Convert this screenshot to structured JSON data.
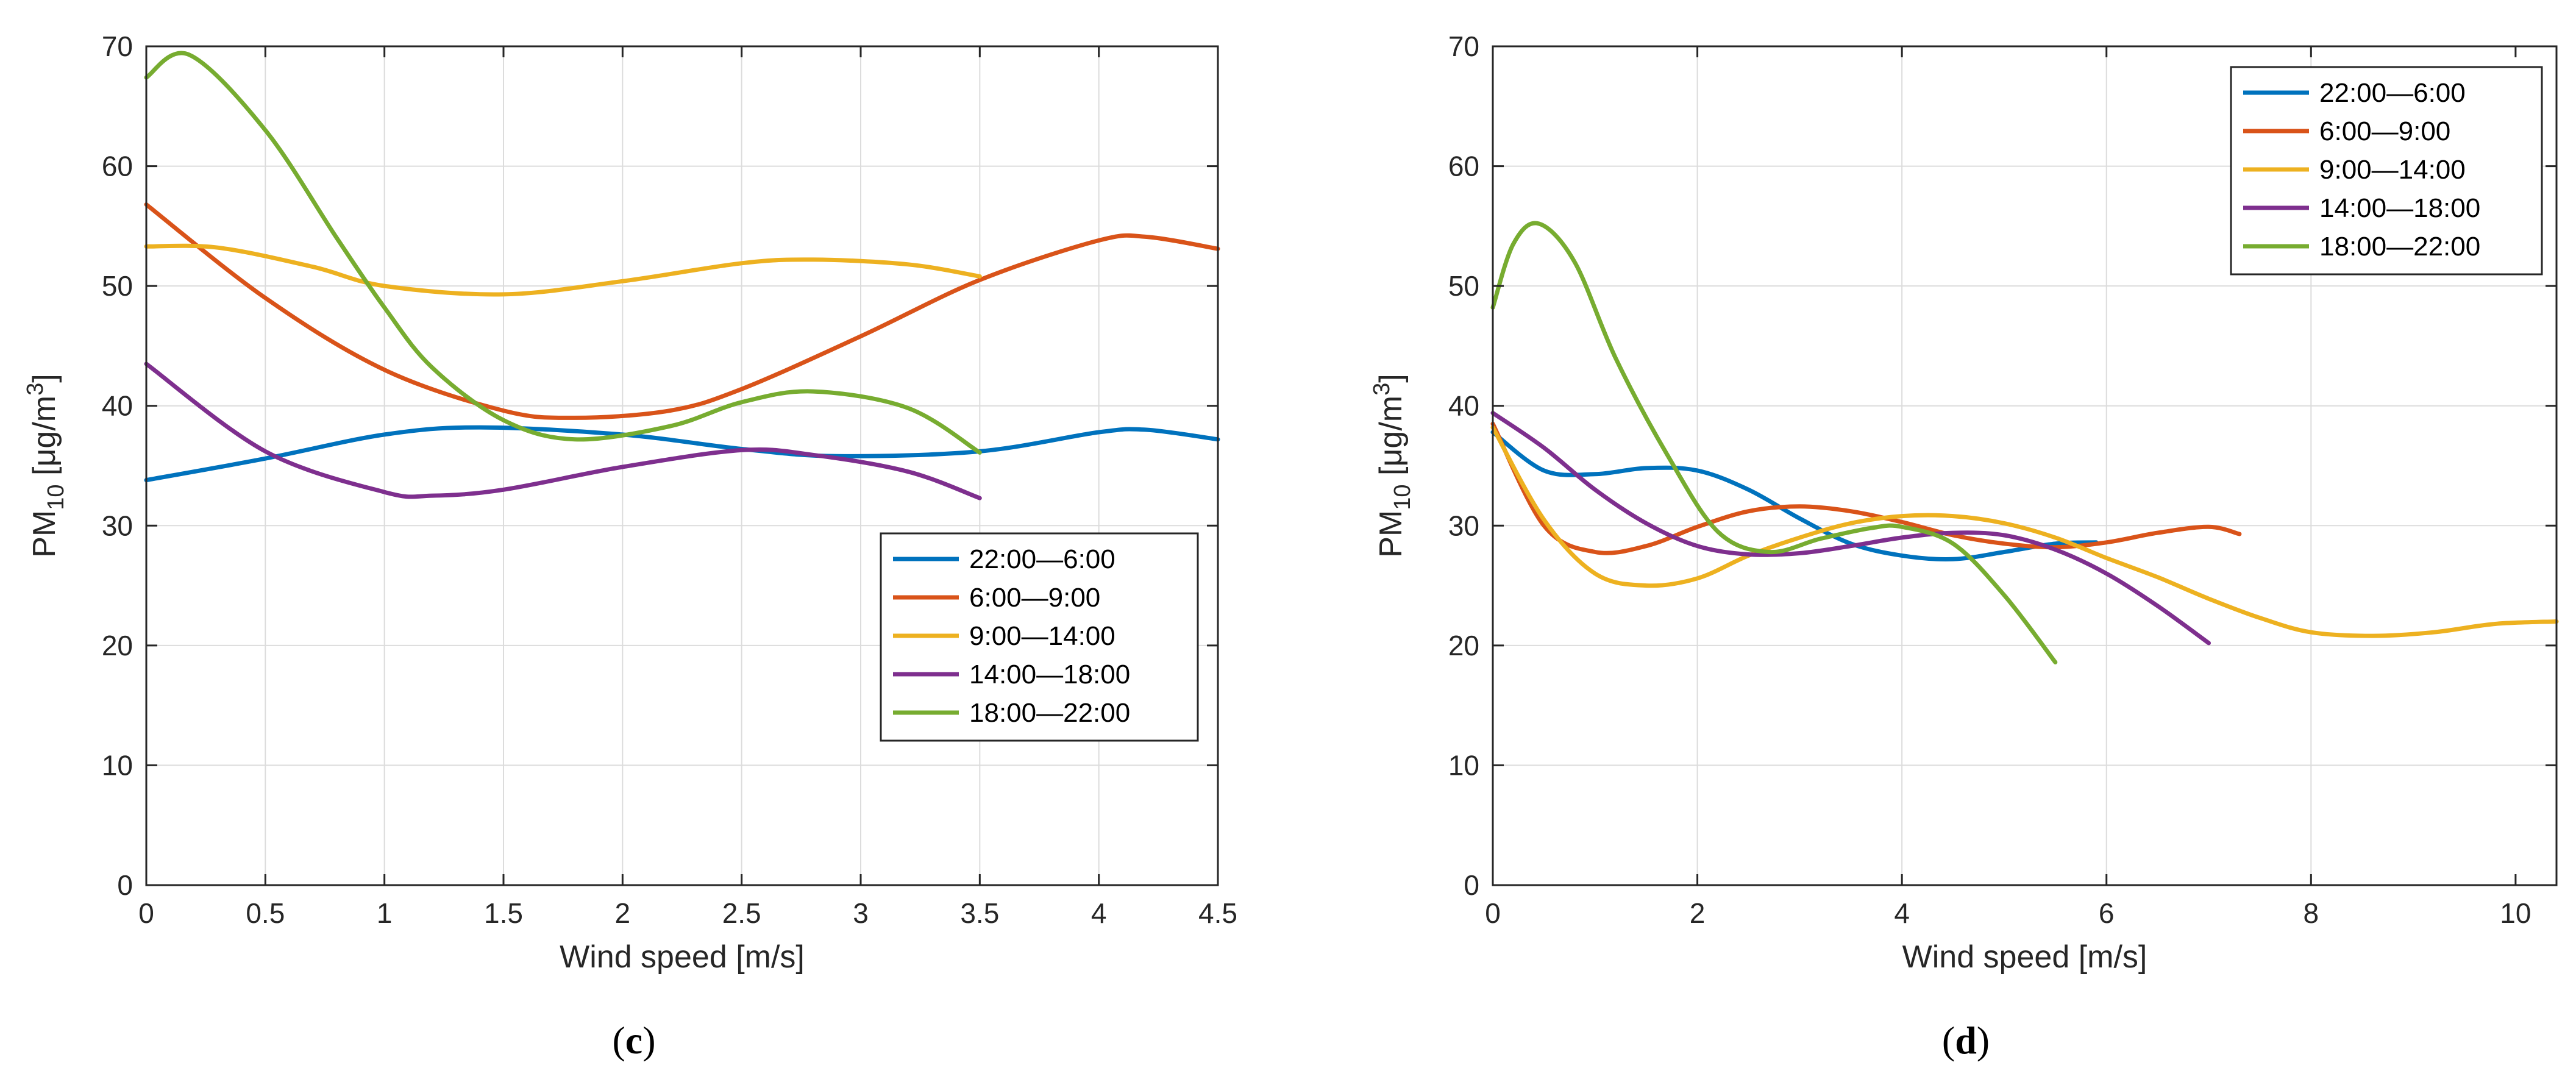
{
  "chart_data": [
    {
      "type": "line",
      "panel_label": "c",
      "xlabel": "Wind speed [m/s]",
      "ylabel_base": "PM",
      "ylabel_sub": "10",
      "ylabel_units_pre": " [μg/m",
      "ylabel_units_sup": "3",
      "ylabel_units_post": "]",
      "xlim": [
        0,
        4.5
      ],
      "ylim": [
        0,
        70
      ],
      "xticks": [
        0,
        0.5,
        1,
        1.5,
        2,
        2.5,
        3,
        3.5,
        4,
        4.5
      ],
      "xtick_labels": [
        "0",
        "0.5",
        "1",
        "1.5",
        "2",
        "2.5",
        "3",
        "3.5",
        "4",
        "4.5"
      ],
      "yticks": [
        0,
        10,
        20,
        30,
        40,
        50,
        60,
        70
      ],
      "ytick_labels": [
        "0",
        "10",
        "20",
        "30",
        "40",
        "50",
        "60",
        "70"
      ],
      "grid": true,
      "legend_position": "lower-right",
      "series": [
        {
          "name": "22:00—6:00",
          "color": "#0072BD",
          "x": [
            0,
            0.5,
            1,
            1.4,
            2,
            2.5,
            2.9,
            3.5,
            4,
            4.2,
            4.5
          ],
          "y": [
            33.8,
            35.6,
            37.6,
            38.2,
            37.6,
            36.4,
            35.8,
            36.2,
            37.8,
            38.0,
            37.2
          ]
        },
        {
          "name": "6:00—9:00",
          "color": "#D95319",
          "x": [
            0,
            0.5,
            1,
            1.5,
            1.8,
            2.2,
            2.5,
            3,
            3.5,
            4,
            4.2,
            4.5
          ],
          "y": [
            56.8,
            49.0,
            43.0,
            39.6,
            39.0,
            39.6,
            41.4,
            45.8,
            50.5,
            53.8,
            54.1,
            53.1
          ]
        },
        {
          "name": "9:00—14:00",
          "color": "#EDB120",
          "x": [
            0,
            0.3,
            0.7,
            1,
            1.5,
            2,
            2.5,
            2.8,
            3.2,
            3.5
          ],
          "y": [
            53.3,
            53.2,
            51.6,
            50.0,
            49.3,
            50.4,
            51.9,
            52.2,
            51.8,
            50.8
          ]
        },
        {
          "name": "14:00—18:00",
          "color": "#7E2F8E",
          "x": [
            0,
            0.5,
            1,
            1.2,
            1.5,
            2,
            2.5,
            2.8,
            3.2,
            3.5
          ],
          "y": [
            43.5,
            36.2,
            32.8,
            32.5,
            33.0,
            34.9,
            36.3,
            35.9,
            34.5,
            32.3
          ]
        },
        {
          "name": "18:00—22:00",
          "color": "#77AC30",
          "x": [
            0,
            0.18,
            0.5,
            0.8,
            1,
            1.2,
            1.5,
            1.8,
            2.2,
            2.5,
            2.8,
            3.2,
            3.5
          ],
          "y": [
            67.4,
            69.3,
            63.0,
            54.0,
            48.2,
            43.2,
            38.8,
            37.2,
            38.3,
            40.3,
            41.2,
            39.8,
            36.1
          ]
        }
      ]
    },
    {
      "type": "line",
      "panel_label": "d",
      "xlabel": "Wind speed [m/s]",
      "ylabel_base": "PM",
      "ylabel_sub": "10",
      "ylabel_units_pre": " [μg/m",
      "ylabel_units_sup": "3",
      "ylabel_units_post": "]",
      "xlim": [
        0,
        10.4
      ],
      "ylim": [
        0,
        70
      ],
      "xticks": [
        0,
        2,
        4,
        6,
        8,
        10
      ],
      "xtick_labels": [
        "0",
        "2",
        "4",
        "6",
        "8",
        "10"
      ],
      "yticks": [
        0,
        10,
        20,
        30,
        40,
        50,
        60,
        70
      ],
      "ytick_labels": [
        "0",
        "10",
        "20",
        "30",
        "40",
        "50",
        "60",
        "70"
      ],
      "grid": true,
      "legend_position": "top-right",
      "series": [
        {
          "name": "22:00—6:00",
          "color": "#0072BD",
          "x": [
            0,
            0.5,
            1,
            1.5,
            2,
            2.5,
            3,
            3.5,
            4,
            4.5,
            5,
            5.5,
            5.9
          ],
          "y": [
            37.8,
            34.6,
            34.3,
            34.8,
            34.6,
            33.0,
            30.6,
            28.5,
            27.5,
            27.2,
            27.8,
            28.5,
            28.6
          ]
        },
        {
          "name": "6:00—9:00",
          "color": "#D95319",
          "x": [
            0,
            0.5,
            1,
            1.5,
            2,
            2.5,
            3,
            3.5,
            4,
            4.5,
            5,
            5.5,
            6,
            6.5,
            7,
            7.3
          ],
          "y": [
            38.5,
            30.0,
            27.8,
            28.3,
            29.9,
            31.2,
            31.6,
            31.2,
            30.3,
            29.2,
            28.5,
            28.2,
            28.6,
            29.4,
            29.9,
            29.3
          ]
        },
        {
          "name": "9:00—14:00",
          "color": "#EDB120",
          "x": [
            0,
            0.5,
            1,
            1.5,
            2,
            2.5,
            3,
            3.5,
            4,
            4.5,
            5,
            5.5,
            6,
            6.5,
            7,
            7.5,
            8,
            8.6,
            9.2,
            9.8,
            10.4
          ],
          "y": [
            38.2,
            30.5,
            26.0,
            25.0,
            25.6,
            27.5,
            29.0,
            30.2,
            30.8,
            30.8,
            30.2,
            29.0,
            27.3,
            25.7,
            23.9,
            22.3,
            21.1,
            20.8,
            21.1,
            21.8,
            22.0
          ]
        },
        {
          "name": "14:00—18:00",
          "color": "#7E2F8E",
          "x": [
            0,
            0.5,
            1,
            1.5,
            2,
            2.5,
            3,
            3.5,
            4,
            4.5,
            5,
            5.5,
            6,
            6.5,
            7
          ],
          "y": [
            39.4,
            36.5,
            33.0,
            30.2,
            28.3,
            27.6,
            27.7,
            28.3,
            29.0,
            29.4,
            29.2,
            28.0,
            26.0,
            23.3,
            20.2
          ]
        },
        {
          "name": "18:00—22:00",
          "color": "#77AC30",
          "x": [
            0,
            0.2,
            0.45,
            0.8,
            1.2,
            1.7,
            2.2,
            2.7,
            3.2,
            3.7,
            4,
            4.5,
            5,
            5.5
          ],
          "y": [
            48.2,
            53.5,
            55.2,
            52.0,
            44.0,
            36.0,
            29.5,
            27.8,
            28.9,
            29.8,
            29.9,
            28.5,
            24.2,
            18.6
          ]
        }
      ]
    }
  ]
}
